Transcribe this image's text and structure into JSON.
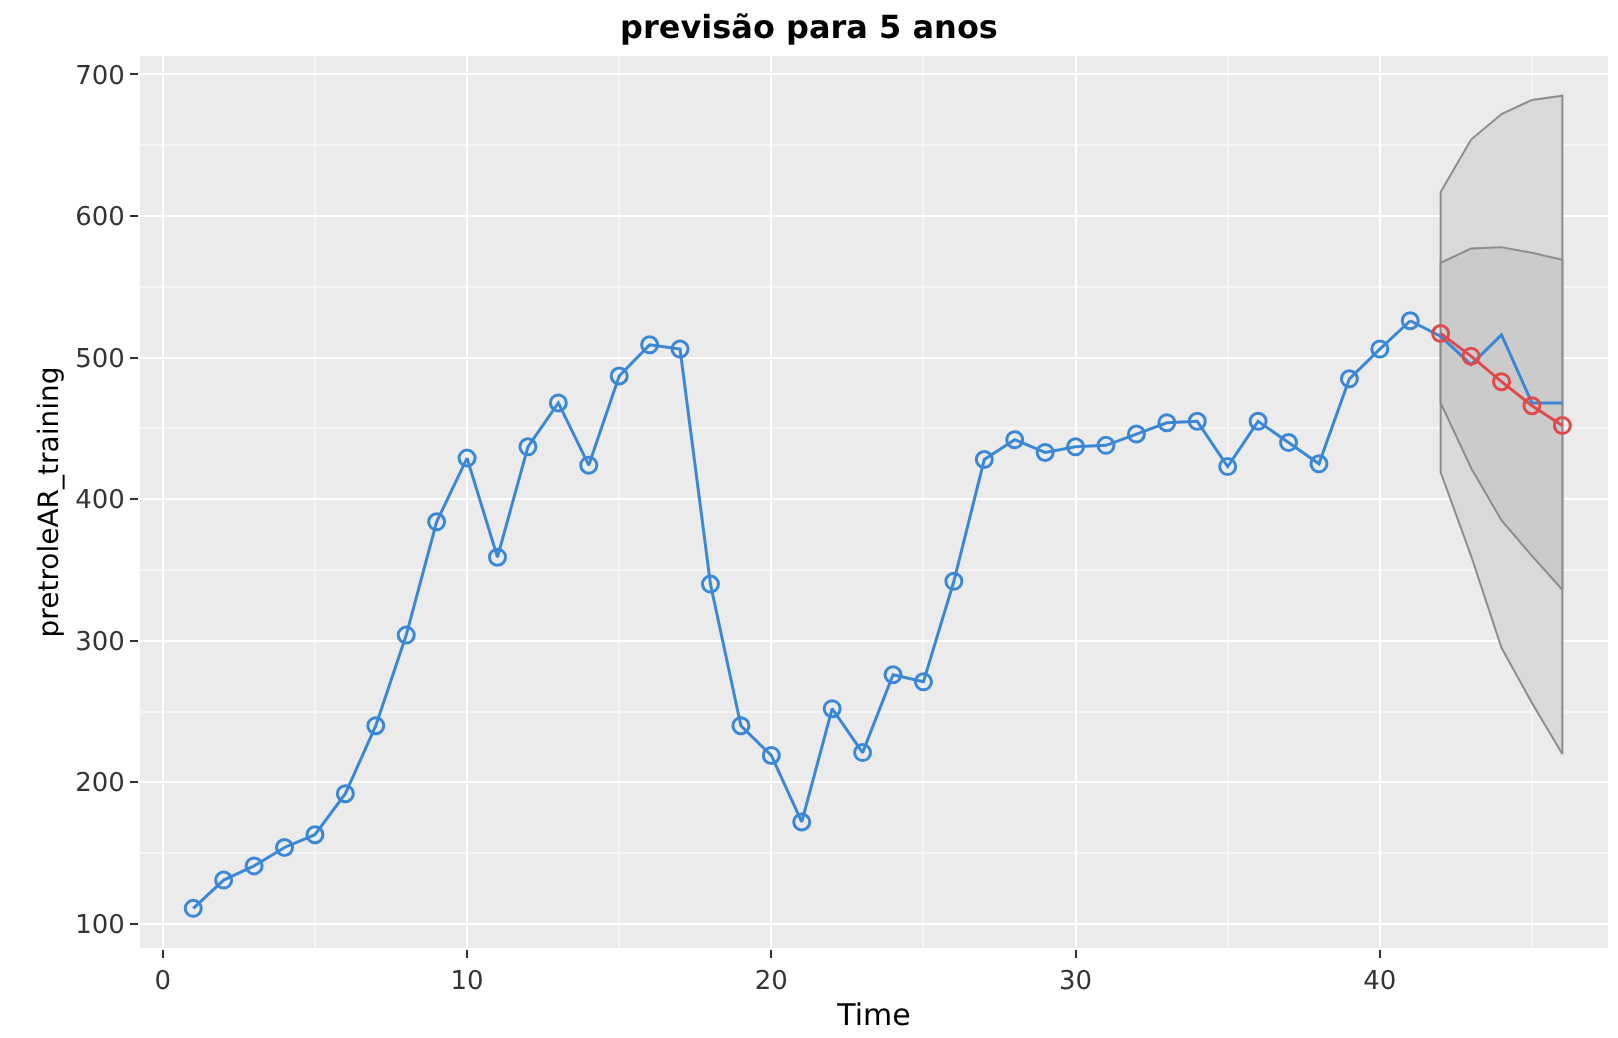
{
  "chart_data": {
    "type": "line",
    "title": "previsão para 5 anos",
    "xlabel": "Time",
    "ylabel": "pretroleAR_training",
    "xlim": [
      -0.75,
      47.5
    ],
    "xticks": [
      0,
      10,
      20,
      30,
      40
    ],
    "ylim": [
      83,
      713
    ],
    "yticks": [
      100,
      200,
      300,
      400,
      500,
      600,
      700
    ],
    "grid": true,
    "series": [
      {
        "color": "#3a87d6",
        "marker": "circle",
        "x": [
          1,
          2,
          3,
          4,
          5,
          6,
          7,
          8,
          9,
          10,
          11,
          12,
          13,
          14,
          15,
          16,
          17,
          18,
          19,
          20,
          21,
          22,
          23,
          24,
          25,
          26,
          27,
          28,
          29,
          30,
          31,
          32,
          33,
          34,
          35,
          36,
          37,
          38,
          39,
          40,
          41
        ],
        "values": [
          111,
          131,
          141,
          154,
          163,
          192,
          240,
          304,
          384,
          429,
          359,
          437,
          468,
          424,
          487,
          509,
          506,
          340,
          240,
          219,
          172,
          252,
          221,
          276,
          271,
          342,
          428,
          442,
          433,
          437,
          438,
          446,
          454,
          455,
          423,
          455,
          440,
          425,
          485,
          506,
          526
        ]
      },
      {
        "color": "#3a87d6",
        "marker": "none",
        "x": [
          41,
          42,
          43,
          44,
          45,
          46
        ],
        "values": [
          526,
          515,
          495,
          516,
          468,
          468
        ]
      },
      {
        "color": "#8c8c8c",
        "marker": "none",
        "x": [
          42,
          43,
          44,
          45,
          46
        ],
        "values": [
          null,
          null,
          null,
          null,
          null
        ],
        "lower": [
          419,
          360,
          295,
          256,
          220
        ],
        "upper": [
          617,
          654,
          672,
          682,
          685
        ]
      },
      {
        "color": "#8c8c8c",
        "marker": "none",
        "x": [
          42,
          43,
          44,
          45,
          46
        ],
        "values": [
          null,
          null,
          null,
          null,
          null
        ],
        "lower": [
          468,
          422,
          385,
          360,
          336
        ],
        "upper": [
          567,
          577,
          578,
          574,
          569
        ]
      },
      {
        "color": "#e04a4a",
        "marker": "circle",
        "x": [
          42,
          43,
          44,
          45,
          46
        ],
        "values": [
          517,
          501,
          483,
          466,
          452
        ]
      }
    ]
  }
}
